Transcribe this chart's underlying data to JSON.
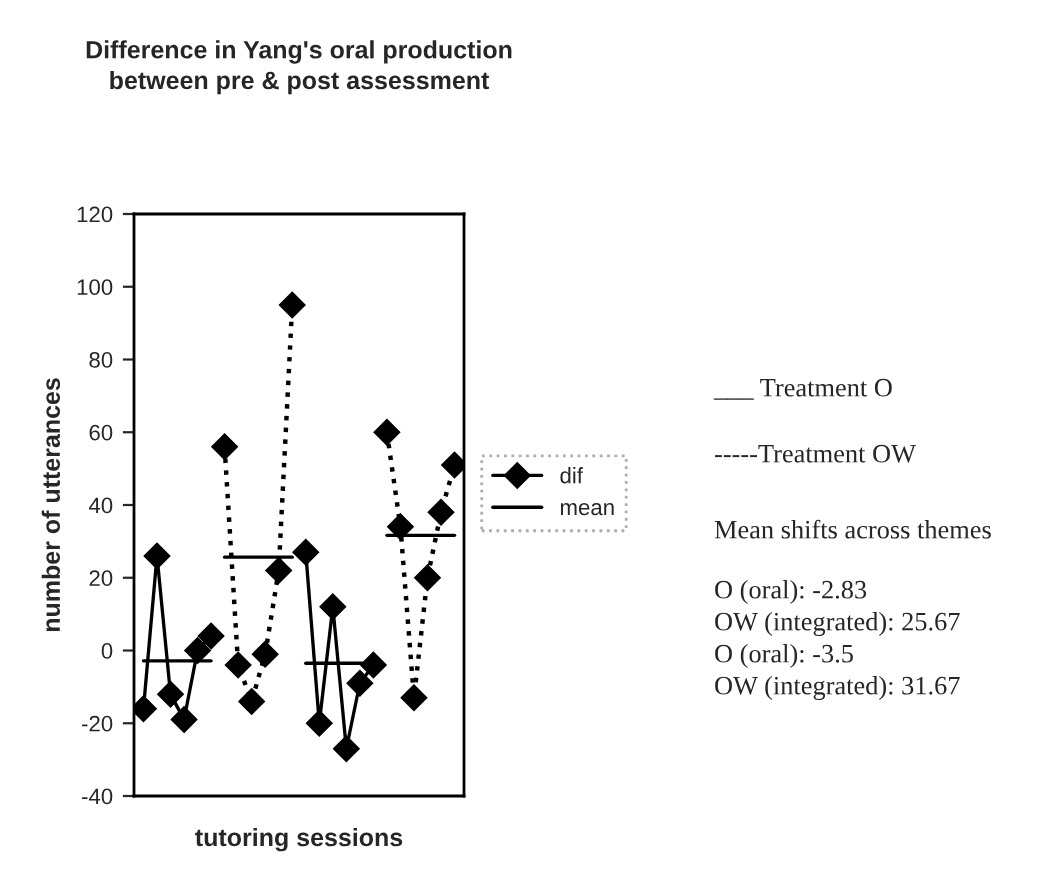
{
  "chart_data": {
    "type": "line",
    "title": "Difference in Yang's oral production\nbetween pre & post assessment",
    "xlabel": "tutoring sessions",
    "ylabel": "number of utterances",
    "categories": [
      null,
      null,
      null,
      null,
      null,
      null,
      null,
      null,
      null,
      null,
      null,
      null,
      null,
      null,
      null,
      null,
      null,
      null,
      null,
      null,
      null,
      null,
      null,
      null
    ],
    "series": [
      {
        "name": "dif",
        "color": "#000000",
        "marker": "diamond",
        "line_style": "solid",
        "values": [
          -16,
          26,
          -12,
          -19,
          0,
          4,
          null,
          null,
          null,
          null,
          null,
          null,
          null,
          null,
          null,
          null,
          null,
          null,
          null,
          null,
          null,
          null,
          null,
          null
        ]
      },
      {
        "color": "#000000",
        "marker": "diamond",
        "line_style": "dotted",
        "values": [
          null,
          null,
          null,
          null,
          null,
          null,
          56,
          -4,
          -14,
          -1,
          22,
          95,
          null,
          null,
          null,
          null,
          null,
          null,
          null,
          null,
          null,
          null,
          null,
          null
        ]
      },
      {
        "color": "#000000",
        "marker": "diamond",
        "line_style": "solid",
        "values": [
          null,
          null,
          null,
          null,
          null,
          null,
          null,
          null,
          null,
          null,
          null,
          null,
          27,
          -20,
          12,
          -27,
          -9,
          -4,
          null,
          null,
          null,
          null,
          null,
          null
        ]
      },
      {
        "color": "#000000",
        "marker": "diamond",
        "line_style": "dotted",
        "values": [
          null,
          null,
          null,
          null,
          null,
          null,
          null,
          null,
          null,
          null,
          null,
          null,
          null,
          null,
          null,
          null,
          null,
          null,
          60,
          34,
          -13,
          20,
          38,
          51
        ]
      },
      {
        "name": "mean",
        "color": "#000000",
        "marker": "none",
        "line_style": "solid",
        "values": [
          -2.83,
          -2.83,
          -2.83,
          -2.83,
          -2.83,
          -2.83,
          null,
          null,
          null,
          null,
          null,
          null,
          null,
          null,
          null,
          null,
          null,
          null,
          null,
          null,
          null,
          null,
          null,
          null
        ]
      },
      {
        "color": "#000000",
        "marker": "none",
        "line_style": "solid",
        "values": [
          null,
          null,
          null,
          null,
          null,
          null,
          25.67,
          25.67,
          25.67,
          25.67,
          25.67,
          25.67,
          null,
          null,
          null,
          null,
          null,
          null,
          null,
          null,
          null,
          null,
          null,
          null
        ]
      },
      {
        "color": "#000000",
        "marker": "none",
        "line_style": "solid",
        "values": [
          null,
          null,
          null,
          null,
          null,
          null,
          null,
          null,
          null,
          null,
          null,
          null,
          -3.5,
          -3.5,
          -3.5,
          -3.5,
          -3.5,
          -3.5,
          null,
          null,
          null,
          null,
          null,
          null
        ]
      },
      {
        "color": "#000000",
        "marker": "none",
        "line_style": "solid",
        "values": [
          null,
          null,
          null,
          null,
          null,
          null,
          null,
          null,
          null,
          null,
          null,
          null,
          null,
          null,
          null,
          null,
          null,
          null,
          31.67,
          31.67,
          31.67,
          31.67,
          31.67,
          31.67
        ]
      }
    ],
    "ylim": [
      -40,
      120
    ],
    "yticks": [
      -40,
      -20,
      0,
      20,
      40,
      60,
      80,
      100,
      120
    ],
    "grid": false,
    "legend": "right",
    "annotations": [
      "___ Treatment O",
      "-----Treatment OW",
      "Mean shifts across themes",
      "O (oral): -2.83",
      "OW (integrated): 25.67",
      "O (oral): -3.5",
      "OW (integrated): 31.67"
    ]
  }
}
